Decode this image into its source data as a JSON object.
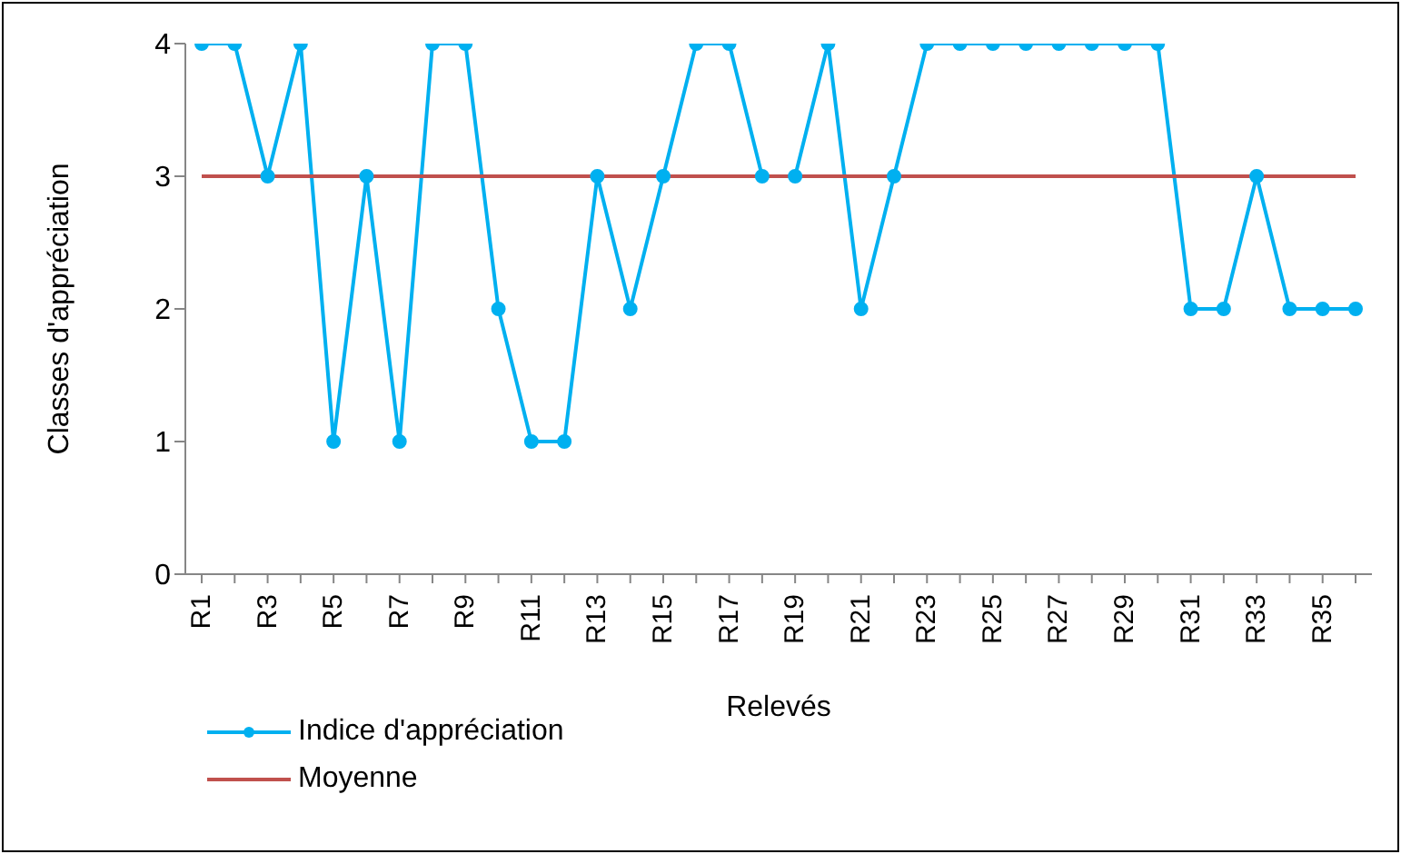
{
  "chart_data": {
    "type": "line",
    "xlabel": "Relevés",
    "ylabel": "Classes d'appréciation",
    "categories": [
      "R1",
      null,
      "R3",
      null,
      "R5",
      null,
      "R7",
      null,
      "R9",
      null,
      "R11",
      null,
      "R13",
      null,
      "R15",
      null,
      "R17",
      null,
      "R19",
      null,
      "R21",
      null,
      "R23",
      null,
      "R25",
      null,
      "R27",
      null,
      "R29",
      null,
      "R31",
      null,
      "R33",
      null,
      "R35",
      null
    ],
    "series": [
      {
        "name": "Indice d'appréciation",
        "color": "#00b0f0",
        "marker": "circle",
        "values": [
          4,
          4,
          3,
          4,
          1,
          3,
          1,
          4,
          4,
          2,
          1,
          1,
          3,
          2,
          3,
          4,
          4,
          3,
          3,
          4,
          2,
          3,
          4,
          4,
          4,
          4,
          4,
          4,
          4,
          4,
          2,
          2,
          3,
          2,
          2,
          2
        ]
      },
      {
        "name": "Moyenne",
        "color": "#c0504d",
        "marker": "none",
        "values": [
          3,
          3,
          3,
          3,
          3,
          3,
          3,
          3,
          3,
          3,
          3,
          3,
          3,
          3,
          3,
          3,
          3,
          3,
          3,
          3,
          3,
          3,
          3,
          3,
          3,
          3,
          3,
          3,
          3,
          3,
          3,
          3,
          3,
          3,
          3,
          3
        ]
      }
    ],
    "ylim": [
      0,
      4
    ],
    "yticks": [
      0,
      1,
      2,
      3,
      4
    ],
    "legend": "bottom left"
  }
}
